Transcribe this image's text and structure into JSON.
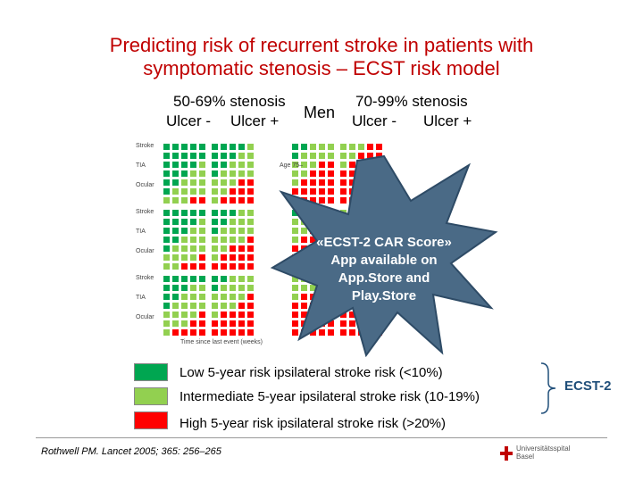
{
  "title_line1": "Predicting risk of recurrent stroke in patients with",
  "title_line2": "symptomatic stenosis – ECST risk model",
  "headers": {
    "stenosis_low": "50-69% stenosis",
    "stenosis_high": "70-99% stenosis",
    "men": "Men",
    "ulcer_neg_1": "Ulcer -",
    "ulcer_pos_1": "Ulcer +",
    "ulcer_neg_2": "Ulcer -",
    "ulcer_pos_2": "Ulcer +"
  },
  "row_labels": [
    "Stroke",
    "TIA",
    "Ocular",
    "Stroke",
    "TIA",
    "Ocular",
    "Stroke",
    "TIA",
    "Ocular"
  ],
  "age_label": "Age 75–",
  "xaxis_label": "Time since last event (weeks)",
  "badge": {
    "line1": "«ECST-2 CAR Score»",
    "line2": "App available on",
    "line3": "App.Store and",
    "line4": "Play.Store"
  },
  "legend": [
    {
      "text": "Low 5-year risk ipsilateral stroke risk  (<10%)",
      "color": "#00a651"
    },
    {
      "text": "Intermediate 5-year ipsilateral stroke risk (10-19%)",
      "color": "#92d050"
    },
    {
      "text": "High 5-year risk ipsilateral stroke risk  (>20%)",
      "color": "#ff0000"
    }
  ],
  "ecst_label": "ECST-2",
  "footnote": "Rothwell PM. Lancet 2005; 365: 256–265",
  "logo": {
    "line1": "Universitätsspital",
    "line2": "Basel"
  }
}
